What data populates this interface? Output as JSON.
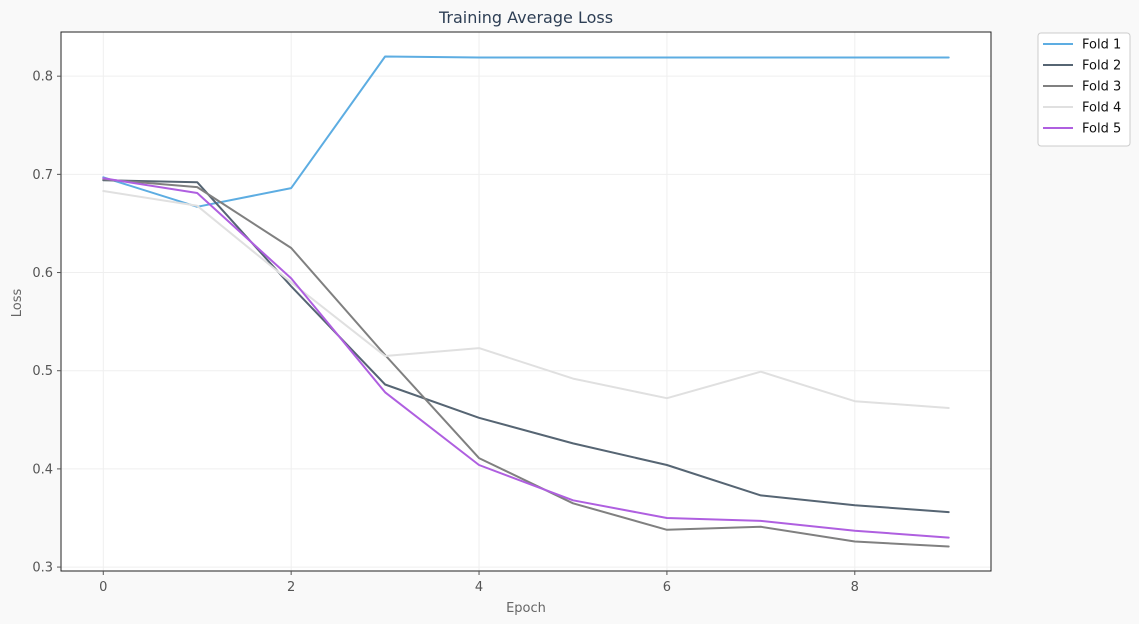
{
  "chart_data": {
    "type": "line",
    "title": "Training Average Loss",
    "xlabel": "Epoch",
    "ylabel": "Loss",
    "x": [
      0,
      1,
      2,
      3,
      4,
      5,
      6,
      7,
      8,
      9
    ],
    "xlim": [
      -0.45,
      9.45
    ],
    "ylim": [
      0.296,
      0.845
    ],
    "xticks": [
      0,
      2,
      4,
      6,
      8
    ],
    "yticks": [
      0.3,
      0.4,
      0.5,
      0.6,
      0.7,
      0.8
    ],
    "xtick_labels": [
      "0",
      "2",
      "4",
      "6",
      "8"
    ],
    "ytick_labels": [
      "0.3",
      "0.4",
      "0.5",
      "0.6",
      "0.7",
      "0.8"
    ],
    "grid": true,
    "legend_position": "outside-top-right",
    "series": [
      {
        "name": "Fold 1",
        "color": "#5dade2",
        "values": [
          0.697,
          0.667,
          0.686,
          0.82,
          0.819,
          0.819,
          0.819,
          0.819,
          0.819,
          0.819
        ]
      },
      {
        "name": "Fold 2",
        "color": "#566573",
        "values": [
          0.694,
          0.692,
          0.586,
          0.486,
          0.452,
          0.426,
          0.404,
          0.373,
          0.363,
          0.356
        ]
      },
      {
        "name": "Fold 3",
        "color": "#808080",
        "values": [
          0.695,
          0.687,
          0.625,
          0.516,
          0.411,
          0.365,
          0.338,
          0.341,
          0.326,
          0.321
        ]
      },
      {
        "name": "Fold 4",
        "color": "#e0e0e0",
        "values": [
          0.683,
          0.668,
          0.59,
          0.515,
          0.523,
          0.492,
          0.472,
          0.499,
          0.469,
          0.462
        ]
      },
      {
        "name": "Fold 5",
        "color": "#af5fe0",
        "values": [
          0.696,
          0.681,
          0.594,
          0.478,
          0.404,
          0.368,
          0.35,
          0.347,
          0.337,
          0.33
        ]
      }
    ]
  }
}
